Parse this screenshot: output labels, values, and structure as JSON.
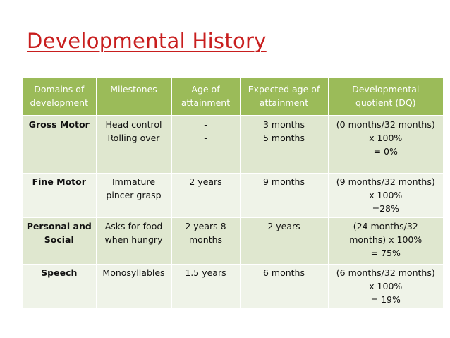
{
  "title": "Developmental History",
  "table": {
    "headers": [
      [
        "Domains of",
        "development"
      ],
      [
        "Milestones"
      ],
      [
        "Age of",
        "attainment"
      ],
      [
        "Expected age of",
        "attainment"
      ],
      [
        "Developmental",
        "quotient (DQ)"
      ]
    ],
    "rows": [
      {
        "domain": [
          "Gross Motor"
        ],
        "milestones": [
          "Head control",
          "Rolling over"
        ],
        "age": [
          "-",
          "-"
        ],
        "expected": [
          "3 months",
          "5 months"
        ],
        "dq": [
          "(0 months/32 months)",
          "x 100%",
          "= 0%"
        ]
      },
      {
        "domain": [
          "Fine Motor"
        ],
        "milestones": [
          "Immature",
          "pincer grasp"
        ],
        "age": [
          "2 years"
        ],
        "expected": [
          "9 months"
        ],
        "dq": [
          "(9 months/32 months)",
          "x 100%",
          "=28%"
        ]
      },
      {
        "domain": [
          "Personal and",
          "Social"
        ],
        "milestones": [
          "Asks for food",
          "when hungry"
        ],
        "age": [
          "2 years 8",
          "months"
        ],
        "expected": [
          "2 years"
        ],
        "dq": [
          "(24 months/32",
          "months) x 100%",
          "= 75%"
        ]
      },
      {
        "domain": [
          "Speech"
        ],
        "milestones": [
          "Monosyllables"
        ],
        "age": [
          "1.5 years"
        ],
        "expected": [
          "6 months"
        ],
        "dq": [
          "(6 months/32 months)",
          "x 100%",
          "= 19%"
        ]
      }
    ]
  },
  "colors": {
    "title": "#c81e1e",
    "header_bg": "#9bbb59",
    "row_dark": "#dfe7cf",
    "row_light": "#eff3e8"
  }
}
